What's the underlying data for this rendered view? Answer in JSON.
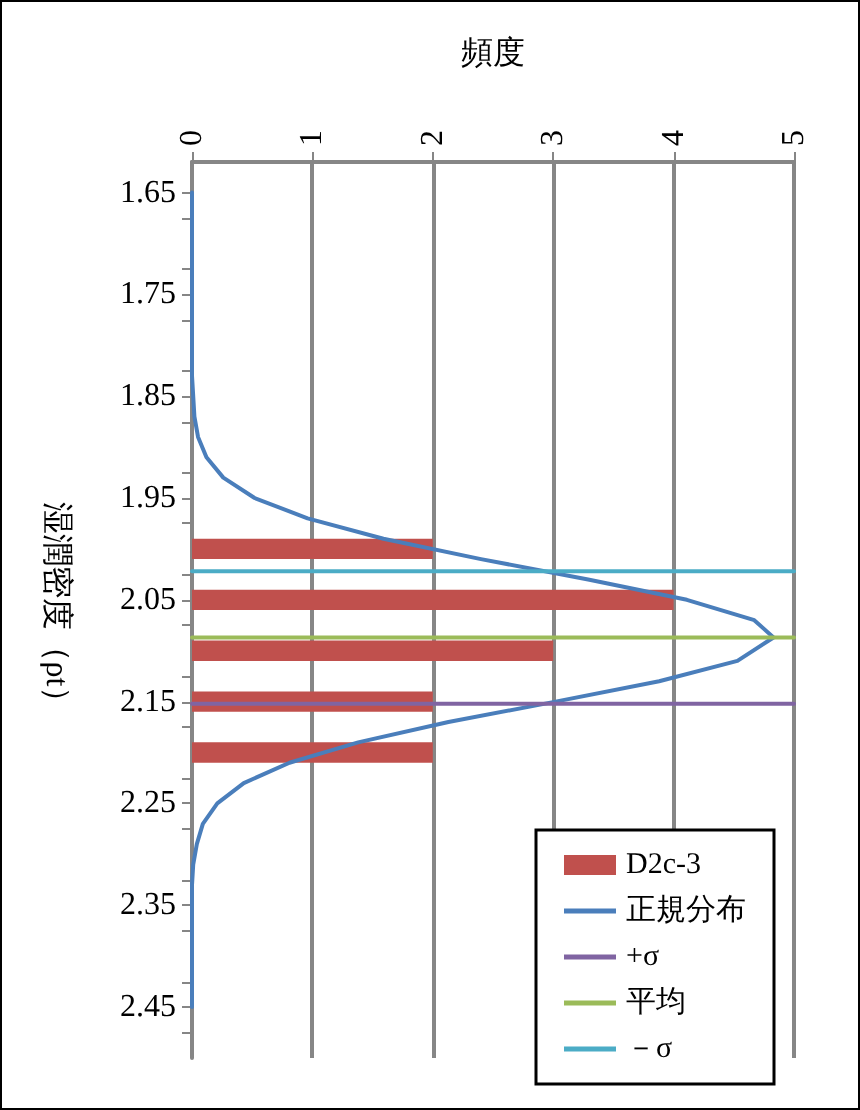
{
  "chart_data": {
    "type": "bar",
    "orientation": "horizontal",
    "xlabel": "頻度",
    "ylabel": "湿潤密度（ρt）",
    "xlim": [
      0,
      5
    ],
    "xticks": [
      0,
      1,
      2,
      3,
      4,
      5
    ],
    "ylim": [
      2.5,
      1.62
    ],
    "yticks": [
      1.65,
      1.75,
      1.85,
      1.95,
      2.05,
      2.15,
      2.25,
      2.35,
      2.45,
      {
        "value": 1.675,
        "label": null
      },
      {
        "value": 1.725,
        "label": null
      },
      {
        "value": 1.775,
        "label": null
      },
      {
        "value": 1.825,
        "label": null
      },
      {
        "value": 1.875,
        "label": null
      },
      {
        "value": 1.925,
        "label": null
      },
      {
        "value": 1.975,
        "label": null
      },
      {
        "value": 2.025,
        "label": null
      },
      {
        "value": 2.075,
        "label": null
      },
      {
        "value": 2.125,
        "label": null
      },
      {
        "value": 2.175,
        "label": null
      },
      {
        "value": 2.225,
        "label": null
      },
      {
        "value": 2.275,
        "label": null
      },
      {
        "value": 2.325,
        "label": null
      },
      {
        "value": 2.375,
        "label": null
      },
      {
        "value": 2.425,
        "label": null
      },
      {
        "value": 2.475,
        "label": null
      }
    ],
    "grid": "x",
    "legend": "bottom right",
    "marker": "none",
    "series": [
      {
        "name": "D2c-3",
        "color": "#c0504d",
        "x": [
          2.0,
          2.05,
          2.1,
          2.15,
          2.2
        ],
        "values": [
          2,
          4,
          3,
          2,
          2
        ]
      },
      {
        "type": "line",
        "name": "正規分布",
        "color": "#4a7ebb",
        "x": [
          1.65,
          1.69,
          1.73,
          1.77,
          1.81,
          1.83,
          1.85,
          1.87,
          1.89,
          1.91,
          1.93,
          1.95,
          1.97,
          1.99,
          2.01,
          2.03,
          2.05,
          2.07,
          2.087,
          2.11,
          2.13,
          2.15,
          2.17,
          2.19,
          2.21,
          2.23,
          2.25,
          2.27,
          2.29,
          2.31,
          2.33,
          2.37,
          2.41,
          2.45
        ],
        "values": [
          0,
          0,
          0,
          0,
          0,
          0,
          0.01,
          0.02,
          0.05,
          0.12,
          0.26,
          0.52,
          0.96,
          1.59,
          2.4,
          3.29,
          4.11,
          4.67,
          4.83,
          4.53,
          3.88,
          3.02,
          2.13,
          1.38,
          0.81,
          0.43,
          0.21,
          0.09,
          0.04,
          0.01,
          0,
          0,
          0,
          0
        ]
      },
      {
        "type": "line",
        "name": "+σ",
        "color": "#8064a2",
        "x": [
          2.152,
          2.152
        ],
        "values": [
          0,
          5
        ]
      },
      {
        "type": "line",
        "name": "平均",
        "color": "#9bbb59",
        "x": [
          2.087,
          2.087
        ],
        "values": [
          0,
          5
        ]
      },
      {
        "type": "line",
        "name": "－σ",
        "color": "#4bacc6",
        "x": [
          2.022,
          2.022
        ],
        "values": [
          0,
          5
        ]
      }
    ]
  }
}
